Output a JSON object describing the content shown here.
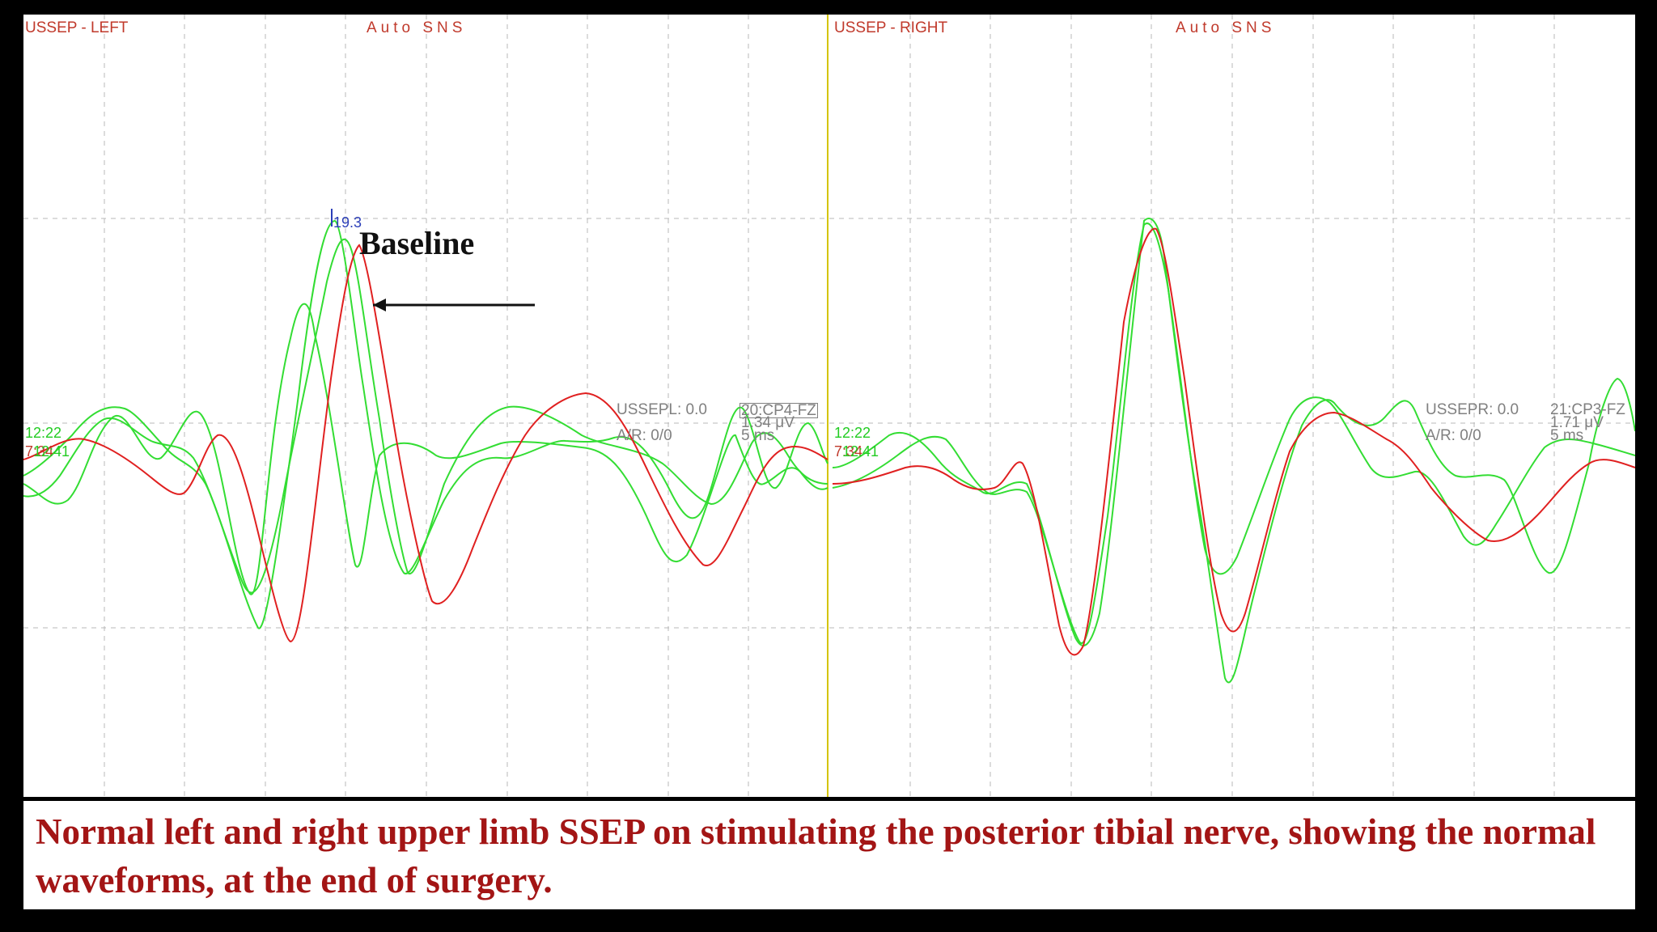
{
  "left_panel": {
    "title": "USSEP - LEFT",
    "mode": "Auto SNS",
    "channel_info": "USSEPL: 0.0",
    "ar_info": "A/R: 0/0",
    "channel_name": "20:CP4-FZ",
    "amplitude": "1.34 μV",
    "timebase": "5 ms",
    "time_green": "12:22",
    "time_orange": "7:34",
    "time_red": "12:41",
    "marker_value": "19.3"
  },
  "right_panel": {
    "title": "USSEP - RIGHT",
    "mode": "Auto SNS",
    "channel_info": "USSEPR: 0.0",
    "ar_info": "A/R: 0/0",
    "channel_name": "21:CP3-FZ",
    "amplitude": "1.71 μV",
    "timebase": "5 ms",
    "time_green": "12:22",
    "time_orange": "7:34",
    "time_red": "12:41"
  },
  "annotation": {
    "label": "Baseline",
    "arrow_direction": "left"
  },
  "caption": "Normal left and right upper limb SSEP on stimulating the posterior tibial nerve, showing the normal waveforms, at the end of surgery.",
  "colors": {
    "green_trace": "#33dd33",
    "red_trace": "#e02020",
    "divider": "#d4c400",
    "grid": "#b8b8b8",
    "caption_text": "#a31515",
    "marker": "#2c3fb8"
  }
}
